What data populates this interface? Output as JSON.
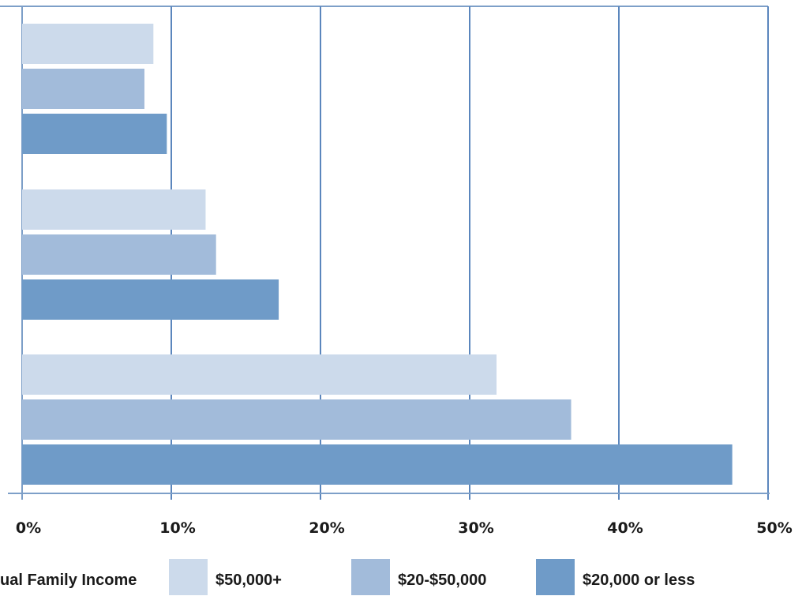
{
  "chart_data": {
    "type": "bar",
    "orientation": "horizontal",
    "title": "",
    "xlabel": "",
    "ylabel": "",
    "xlim": [
      0,
      50
    ],
    "x_ticks": [
      0,
      10,
      20,
      30,
      40,
      50
    ],
    "x_tick_labels": [
      "0%",
      "10%",
      "20%",
      "30%",
      "40%",
      "50%"
    ],
    "grid": true,
    "legend_position": "bottom",
    "legend_title": "ual Family Income",
    "categories": [
      "",
      "",
      ""
    ],
    "series": [
      {
        "name": "$50,000+",
        "color": "#ccdaeb",
        "values": [
          8.8,
          12.3,
          31.8
        ]
      },
      {
        "name": "$20-$50,000",
        "color": "#a2bbda",
        "values": [
          8.2,
          13.0,
          36.8
        ]
      },
      {
        "name": "$20,000 or less",
        "color": "#6f9bc8",
        "values": [
          9.7,
          17.2,
          47.6
        ]
      }
    ],
    "frame_color": "#7d9fc8",
    "grid_color": "#5b86bd"
  }
}
